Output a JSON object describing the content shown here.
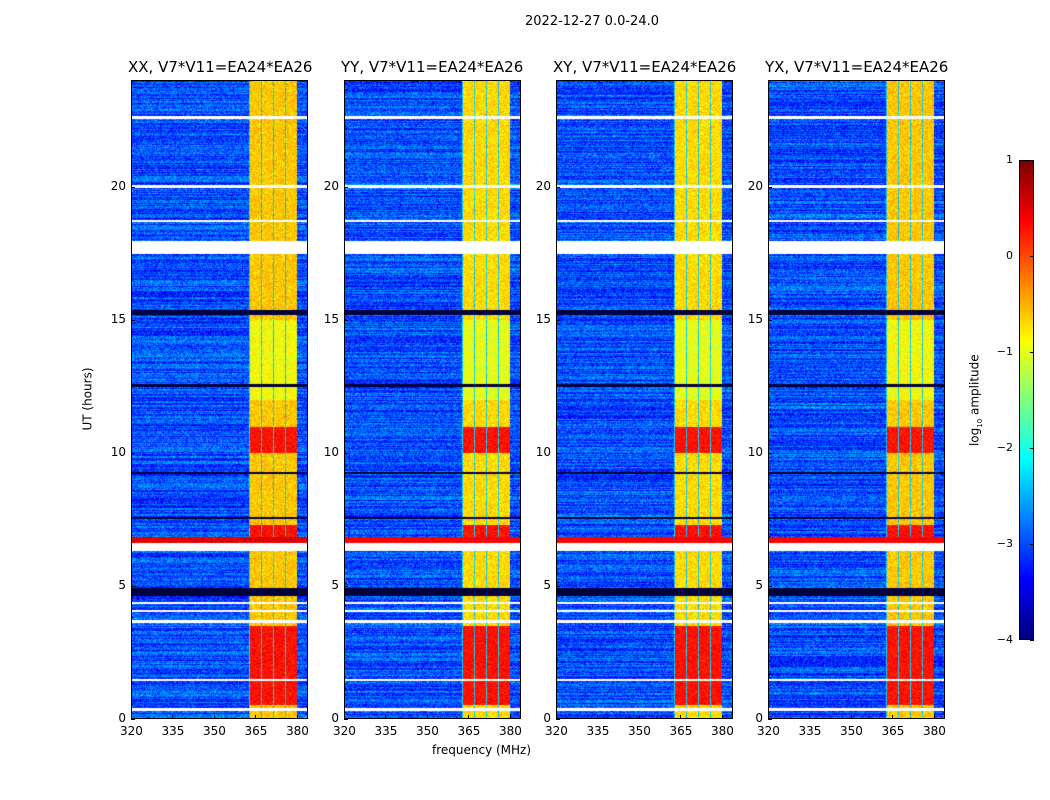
{
  "chart_data": {
    "type": "heatmap",
    "suptitle": "2022-12-27 0.0-24.0",
    "xlabel": "frequency (MHz)",
    "ylabel": "UT (hours)",
    "xlim": [
      320,
      384
    ],
    "ylim": [
      0,
      24
    ],
    "xticks": [
      320,
      335,
      350,
      365,
      380
    ],
    "yticks": [
      0,
      5,
      10,
      15,
      20
    ],
    "panels": [
      {
        "title": "XX, V7*V11=EA24*EA26"
      },
      {
        "title": "YY, V7*V11=EA24*EA26"
      },
      {
        "title": "XY, V7*V11=EA24*EA26"
      },
      {
        "title": "YX, V7*V11=EA24*EA26"
      }
    ],
    "colorbar": {
      "label_prefix": "log",
      "label_sub": "10",
      "label_suffix": " amplitude",
      "range": [
        -4,
        1
      ],
      "ticks": [
        1,
        0,
        -1,
        -2,
        -3,
        -4
      ],
      "colormap": "jet"
    },
    "features": {
      "background_level": -3,
      "bright_band_mhz": [
        360,
        380
      ],
      "bright_band_level": -0.7,
      "strong_rfi_hours": [
        [
          6.6,
          7.3
        ],
        [
          10.0,
          11.0
        ],
        [
          0.5,
          3.5
        ]
      ],
      "flagged_hours": [
        [
          17.5,
          18.0
        ],
        [
          6.3,
          6.6
        ],
        [
          3.6,
          3.7
        ],
        [
          4.0,
          4.1
        ],
        [
          4.3,
          4.4
        ],
        [
          1.4,
          1.5
        ],
        [
          0.3,
          0.4
        ],
        [
          20.0,
          20.1
        ],
        [
          18.7,
          18.8
        ],
        [
          22.6,
          22.7
        ]
      ],
      "dropout_hours": [
        [
          15.2,
          15.4
        ],
        [
          4.6,
          4.9
        ],
        [
          12.5,
          12.6
        ],
        [
          7.5,
          7.6
        ],
        [
          9.2,
          9.3
        ]
      ]
    }
  }
}
